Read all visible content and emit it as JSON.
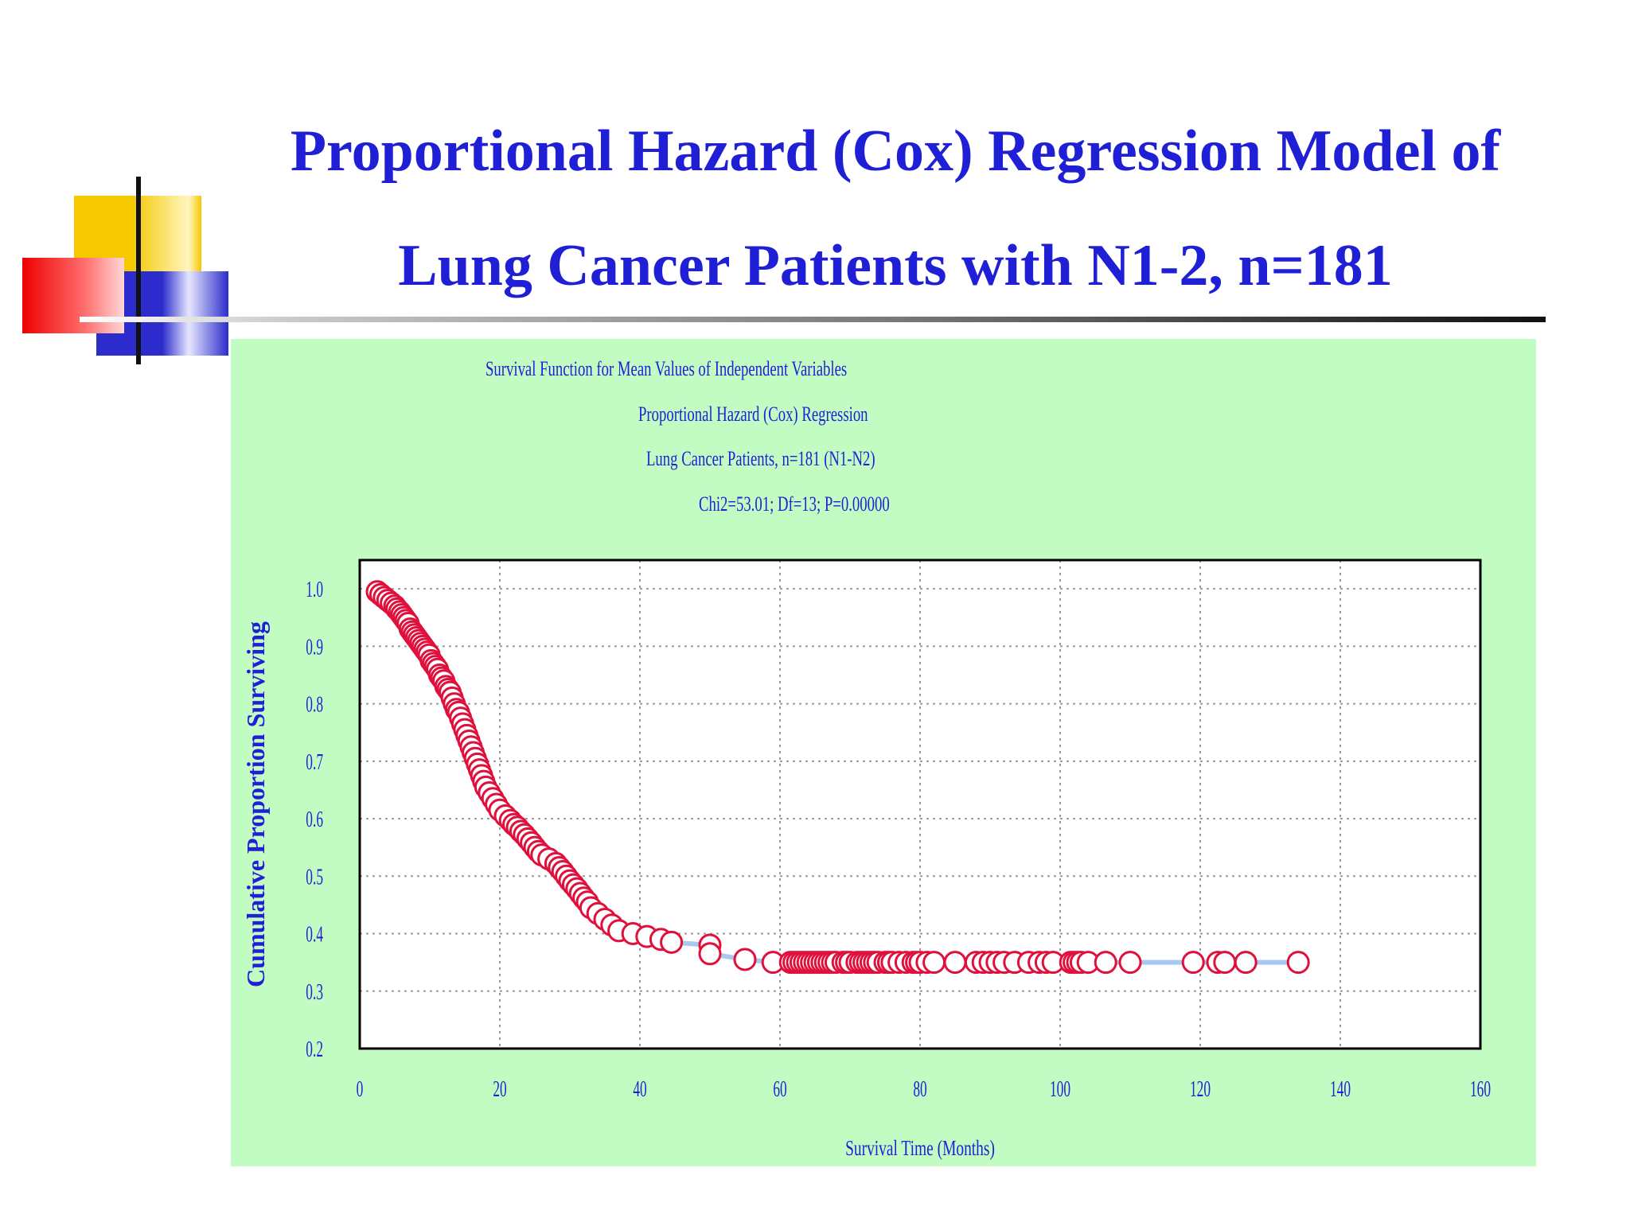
{
  "slide": {
    "title_line1": "Proportional Hazard (Cox) Regression Model of",
    "title_line2": "Lung Cancer Patients with N1-2, n=181",
    "title_color": "#1f1fd6",
    "panel_color": "#c2fcc2"
  },
  "chart_data": {
    "type": "scatter",
    "title_lines": [
      "Survival Function for Mean Values of Independent Variables",
      "Proportional Hazard (Cox) Regression",
      "Lung Cancer Patients, n=181 (N1-N2)",
      "Chi2=53.01; Df=13; P=0.00000"
    ],
    "xlabel": "Survival Time (Months)",
    "ylabel": "Cumulative Proportion Surviving",
    "xlim": [
      0,
      160
    ],
    "ylim": [
      0.2,
      1.0
    ],
    "xticks": [
      "0",
      "20",
      "40",
      "60",
      "80",
      "100",
      "120",
      "140",
      "160"
    ],
    "yticks": [
      "0.2",
      "0.3",
      "0.4",
      "0.5",
      "0.6",
      "0.7",
      "0.8",
      "0.9",
      "1.0"
    ],
    "grid": true,
    "marker_color": "#e0103c",
    "line_color": "#a8c8ee",
    "points": [
      [
        2.5,
        0.995
      ],
      [
        3,
        0.99
      ],
      [
        3.5,
        0.985
      ],
      [
        4,
        0.98
      ],
      [
        4.5,
        0.975
      ],
      [
        5,
        0.97
      ],
      [
        5.3,
        0.965
      ],
      [
        5.7,
        0.96
      ],
      [
        6,
        0.955
      ],
      [
        6.3,
        0.95
      ],
      [
        6.6,
        0.945
      ],
      [
        6.9,
        0.94
      ],
      [
        7.2,
        0.93
      ],
      [
        7.5,
        0.925
      ],
      [
        7.8,
        0.92
      ],
      [
        8.1,
        0.915
      ],
      [
        8.4,
        0.91
      ],
      [
        8.7,
        0.905
      ],
      [
        9,
        0.9
      ],
      [
        9.3,
        0.895
      ],
      [
        9.6,
        0.89
      ],
      [
        9.9,
        0.885
      ],
      [
        10.2,
        0.875
      ],
      [
        10.5,
        0.87
      ],
      [
        10.8,
        0.865
      ],
      [
        11.1,
        0.86
      ],
      [
        11.4,
        0.85
      ],
      [
        11.7,
        0.845
      ],
      [
        12,
        0.84
      ],
      [
        12.3,
        0.83
      ],
      [
        12.6,
        0.825
      ],
      [
        12.9,
        0.82
      ],
      [
        13.2,
        0.81
      ],
      [
        13.5,
        0.8
      ],
      [
        13.8,
        0.79
      ],
      [
        14.1,
        0.785
      ],
      [
        14.4,
        0.775
      ],
      [
        14.7,
        0.765
      ],
      [
        15,
        0.755
      ],
      [
        15.3,
        0.745
      ],
      [
        15.6,
        0.735
      ],
      [
        15.9,
        0.725
      ],
      [
        16.2,
        0.715
      ],
      [
        16.5,
        0.705
      ],
      [
        16.8,
        0.695
      ],
      [
        17.1,
        0.685
      ],
      [
        17.4,
        0.675
      ],
      [
        17.7,
        0.665
      ],
      [
        18,
        0.655
      ],
      [
        18.5,
        0.645
      ],
      [
        19,
        0.635
      ],
      [
        19.5,
        0.625
      ],
      [
        20,
        0.615
      ],
      [
        20.8,
        0.605
      ],
      [
        21.5,
        0.597
      ],
      [
        22,
        0.59
      ],
      [
        22.5,
        0.585
      ],
      [
        23,
        0.578
      ],
      [
        23.5,
        0.572
      ],
      [
        24,
        0.565
      ],
      [
        24.5,
        0.558
      ],
      [
        25,
        0.55
      ],
      [
        25.5,
        0.543
      ],
      [
        26,
        0.537
      ],
      [
        27,
        0.53
      ],
      [
        28,
        0.522
      ],
      [
        28.5,
        0.515
      ],
      [
        29,
        0.508
      ],
      [
        29.5,
        0.5
      ],
      [
        30,
        0.492
      ],
      [
        30.5,
        0.485
      ],
      [
        31,
        0.478
      ],
      [
        31.5,
        0.47
      ],
      [
        32,
        0.462
      ],
      [
        32.5,
        0.455
      ],
      [
        33,
        0.445
      ],
      [
        34,
        0.435
      ],
      [
        35,
        0.425
      ],
      [
        36,
        0.415
      ],
      [
        37,
        0.405
      ],
      [
        39,
        0.4
      ],
      [
        41,
        0.395
      ],
      [
        43,
        0.39
      ],
      [
        44.5,
        0.385
      ],
      [
        50,
        0.38
      ],
      [
        50,
        0.365
      ],
      [
        55,
        0.355
      ],
      [
        59,
        0.35
      ],
      [
        61.5,
        0.35
      ],
      [
        62,
        0.35
      ],
      [
        62.5,
        0.35
      ],
      [
        63,
        0.35
      ],
      [
        63.5,
        0.35
      ],
      [
        64,
        0.35
      ],
      [
        64.5,
        0.35
      ],
      [
        65,
        0.35
      ],
      [
        65.5,
        0.35
      ],
      [
        66,
        0.35
      ],
      [
        66.5,
        0.35
      ],
      [
        67,
        0.35
      ],
      [
        67.5,
        0.35
      ],
      [
        68,
        0.35
      ],
      [
        69,
        0.35
      ],
      [
        69.5,
        0.35
      ],
      [
        70,
        0.35
      ],
      [
        71,
        0.35
      ],
      [
        71.5,
        0.35
      ],
      [
        72,
        0.35
      ],
      [
        72.5,
        0.35
      ],
      [
        73,
        0.35
      ],
      [
        73.5,
        0.35
      ],
      [
        74,
        0.35
      ],
      [
        75,
        0.35
      ],
      [
        75.5,
        0.35
      ],
      [
        76,
        0.35
      ],
      [
        77,
        0.35
      ],
      [
        78,
        0.35
      ],
      [
        79,
        0.35
      ],
      [
        79.5,
        0.35
      ],
      [
        80,
        0.35
      ],
      [
        81,
        0.35
      ],
      [
        82,
        0.35
      ],
      [
        85,
        0.35
      ],
      [
        88,
        0.35
      ],
      [
        89,
        0.35
      ],
      [
        90,
        0.35
      ],
      [
        91,
        0.35
      ],
      [
        92,
        0.35
      ],
      [
        93.5,
        0.35
      ],
      [
        95.5,
        0.35
      ],
      [
        97,
        0.35
      ],
      [
        98,
        0.35
      ],
      [
        99,
        0.35
      ],
      [
        101.5,
        0.35
      ],
      [
        102,
        0.35
      ],
      [
        102.5,
        0.35
      ],
      [
        103,
        0.35
      ],
      [
        104,
        0.35
      ],
      [
        106.5,
        0.35
      ],
      [
        110,
        0.35
      ],
      [
        119,
        0.35
      ],
      [
        122.5,
        0.35
      ],
      [
        123.5,
        0.35
      ],
      [
        126.5,
        0.35
      ],
      [
        134,
        0.35
      ]
    ]
  }
}
